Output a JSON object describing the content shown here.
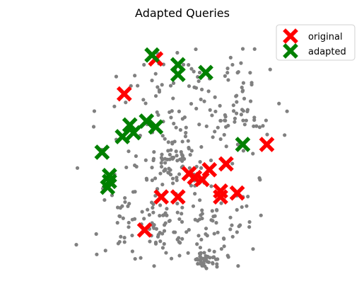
{
  "chart_data": {
    "type": "scatter",
    "title": "Adapted Queries",
    "xlabel": "",
    "ylabel": "",
    "axes_visible": false,
    "grid": false,
    "legend_position": "top-right",
    "xlim": [
      -6.3,
      6.3
    ],
    "ylim": [
      -6.3,
      6.3
    ],
    "series": [
      {
        "name": "original",
        "marker": "X",
        "color": "#ff0000",
        "points": [
          [
            -1.4,
            4.8
          ],
          [
            -3.1,
            3.0
          ],
          [
            4.6,
            0.4
          ],
          [
            2.4,
            -0.6
          ],
          [
            1.5,
            -0.9
          ],
          [
            0.4,
            -1.1
          ],
          [
            0.7,
            -1.3
          ],
          [
            1.1,
            -1.4
          ],
          [
            2.1,
            -2.0
          ],
          [
            2.1,
            -2.3
          ],
          [
            3.0,
            -2.1
          ],
          [
            -0.2,
            -2.3
          ],
          [
            -1.1,
            -2.3
          ],
          [
            -2.0,
            -4.0
          ]
        ]
      },
      {
        "name": "adapted",
        "marker": "X",
        "color": "#008000",
        "points": [
          [
            -1.6,
            5.0
          ],
          [
            -0.2,
            4.5
          ],
          [
            -0.2,
            4.0
          ],
          [
            1.3,
            4.1
          ],
          [
            -2.8,
            1.4
          ],
          [
            -2.6,
            1.0
          ],
          [
            -1.9,
            1.6
          ],
          [
            -1.4,
            1.3
          ],
          [
            -3.2,
            0.8
          ],
          [
            -4.3,
            0.0
          ],
          [
            3.3,
            0.4
          ],
          [
            -3.9,
            -1.2
          ],
          [
            -3.9,
            -1.5
          ],
          [
            -4.0,
            -1.8
          ]
        ]
      },
      {
        "name": "",
        "marker": "o",
        "color": "#808080",
        "point_count": 430,
        "seed": 3,
        "note_blobs": [
          [
            0,
            2.6,
            2.4,
            1.8,
            0.24
          ],
          [
            -1.8,
            -3.6,
            1.4,
            1.2,
            0.17
          ],
          [
            0.8,
            -3.8,
            1.8,
            1.1,
            0.18
          ],
          [
            2.6,
            1.8,
            1.6,
            1.4,
            0.16
          ],
          [
            -0.6,
            -0.5,
            1.0,
            0.8,
            0.15
          ],
          [
            1.5,
            -5.6,
            0.35,
            0.4,
            0.1
          ]
        ]
      }
    ]
  }
}
